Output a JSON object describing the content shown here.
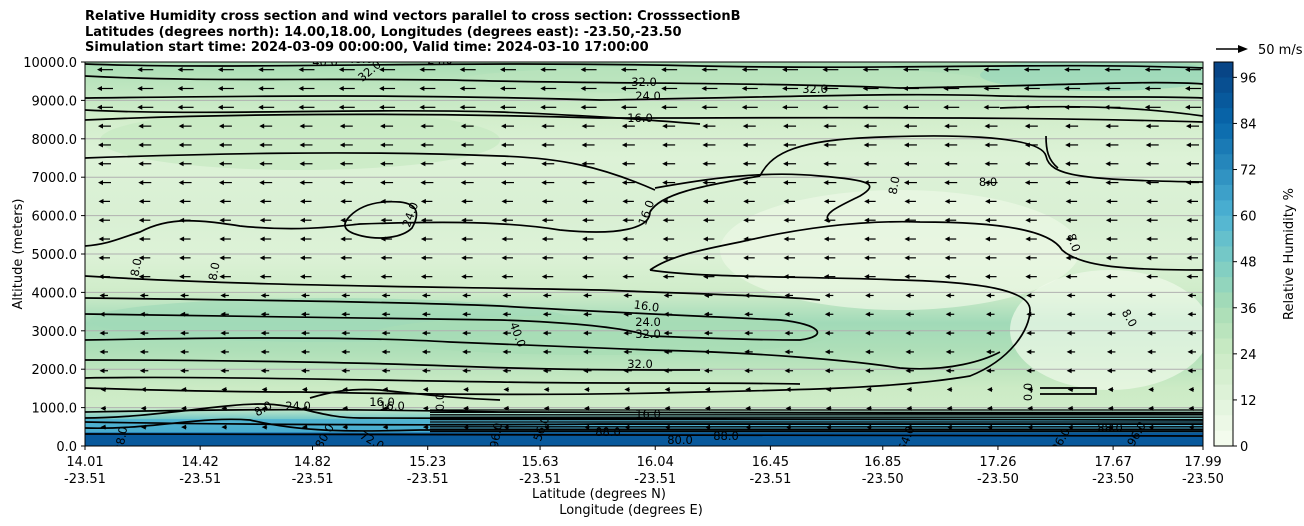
{
  "chart_data": {
    "type": "heatmap",
    "title_lines": [
      "Relative Humidity cross section and wind vectors parallel to cross section: CrosssectionB",
      "Latitudes (degrees north): 14.00,18.00, Longitudes (degrees east): -23.50,-23.50",
      "Simulation start time: 2024-03-09 00:00:00, Valid time: 2024-03-10 17:00:00"
    ],
    "xlabel": "Latitude (degrees N)",
    "xlabel2": "Longitude (degrees E)",
    "ylabel": "Altitude (meters)",
    "x_ticks": [
      {
        "lat": "14.01",
        "lon": "-23.51"
      },
      {
        "lat": "14.42",
        "lon": "-23.51"
      },
      {
        "lat": "14.82",
        "lon": "-23.51"
      },
      {
        "lat": "15.23",
        "lon": "-23.51"
      },
      {
        "lat": "15.63",
        "lon": "-23.51"
      },
      {
        "lat": "16.04",
        "lon": "-23.51"
      },
      {
        "lat": "16.45",
        "lon": "-23.51"
      },
      {
        "lat": "16.85",
        "lon": "-23.50"
      },
      {
        "lat": "17.26",
        "lon": "-23.50"
      },
      {
        "lat": "17.67",
        "lon": "-23.50"
      },
      {
        "lat": "17.99",
        "lon": "-23.50"
      }
    ],
    "x_range": [
      14.01,
      17.99
    ],
    "ylim": [
      0,
      10000
    ],
    "y_ticks": [
      "0.0",
      "1000.0",
      "2000.0",
      "3000.0",
      "4000.0",
      "5000.0",
      "6000.0",
      "7000.0",
      "8000.0",
      "9000.0",
      "10000.0"
    ],
    "grid": "horizontal",
    "colorbar": {
      "label": "Relative Humidity %",
      "ticks": [
        "0",
        "12",
        "24",
        "36",
        "48",
        "60",
        "72",
        "84",
        "96"
      ],
      "range": [
        0,
        100
      ],
      "cmap": "GnBu"
    },
    "quiver_key": "50 m/s",
    "contour_labels": [
      "8.0",
      "16.0",
      "24.0",
      "32.0",
      "40.0",
      "48.0",
      "56.0",
      "64.0",
      "72.0",
      "80.0",
      "88.0",
      "96.0",
      "0.0"
    ],
    "humidity_profile": [
      {
        "alt": 0,
        "rh": 96
      },
      {
        "alt": 300,
        "rh": 90
      },
      {
        "alt": 700,
        "rh": 50
      },
      {
        "alt": 1000,
        "rh": 22
      },
      {
        "alt": 1500,
        "rh": 24
      },
      {
        "alt": 2500,
        "rh": 34
      },
      {
        "alt": 3200,
        "rh": 38
      },
      {
        "alt": 4000,
        "rh": 22
      },
      {
        "alt": 5000,
        "rh": 14
      },
      {
        "alt": 6000,
        "rh": 16
      },
      {
        "alt": 7500,
        "rh": 14
      },
      {
        "alt": 8500,
        "rh": 20
      },
      {
        "alt": 9500,
        "rh": 30
      },
      {
        "alt": 10000,
        "rh": 36
      }
    ]
  }
}
